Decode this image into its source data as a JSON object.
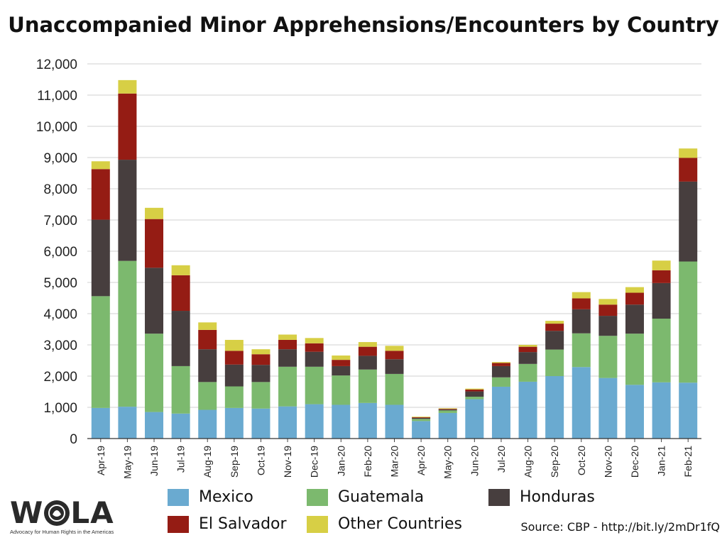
{
  "chart_data": {
    "type": "bar",
    "stacked": true,
    "title": "Unaccompanied Minor Apprehensions/Encounters by Country",
    "xlabel": "",
    "ylabel": "",
    "ylim": [
      0,
      12000
    ],
    "yticks": [
      0,
      1000,
      2000,
      3000,
      4000,
      5000,
      6000,
      7000,
      8000,
      9000,
      10000,
      11000,
      12000
    ],
    "ytick_labels": [
      "0",
      "1,000",
      "2,000",
      "3,000",
      "4,000",
      "5,000",
      "6,000",
      "7,000",
      "8,000",
      "9,000",
      "10,000",
      "11,000",
      "12,000"
    ],
    "grid": true,
    "legend_position": "bottom",
    "categories": [
      "Apr-19",
      "May-19",
      "Jun-19",
      "Jul-19",
      "Aug-19",
      "Sep-19",
      "Oct-19",
      "Nov-19",
      "Dec-19",
      "Jan-20",
      "Feb-20",
      "Mar-20",
      "Apr-20",
      "May-20",
      "Jun-20",
      "Jul-20",
      "Aug-20",
      "Sep-20",
      "Oct-20",
      "Nov-20",
      "Dec-20",
      "Jan-21",
      "Feb-21"
    ],
    "series": [
      {
        "name": "Mexico",
        "color": "#6aaad0",
        "values": [
          980,
          1020,
          850,
          800,
          920,
          980,
          960,
          1030,
          1100,
          1080,
          1140,
          1080,
          560,
          820,
          1260,
          1660,
          1820,
          2000,
          2290,
          1940,
          1720,
          1800,
          1790
        ]
      },
      {
        "name": "Guatemala",
        "color": "#7cb96e",
        "values": [
          3580,
          4670,
          2510,
          1520,
          890,
          690,
          850,
          1270,
          1200,
          940,
          1070,
          990,
          70,
          80,
          80,
          300,
          570,
          850,
          1080,
          1350,
          1640,
          2040,
          3880
        ]
      },
      {
        "name": "Honduras",
        "color": "#473e3e",
        "values": [
          2450,
          3240,
          2110,
          1770,
          1050,
          700,
          550,
          560,
          480,
          300,
          440,
          470,
          30,
          30,
          170,
          360,
          380,
          600,
          770,
          640,
          930,
          1140,
          2560
        ]
      },
      {
        "name": "El Salvador",
        "color": "#951c14",
        "values": [
          1620,
          2120,
          1560,
          1140,
          620,
          440,
          340,
          300,
          270,
          200,
          290,
          270,
          20,
          20,
          60,
          100,
          170,
          230,
          350,
          360,
          380,
          410,
          760
        ]
      },
      {
        "name": "Other Countries",
        "color": "#d7cf45",
        "values": [
          250,
          430,
          360,
          320,
          240,
          350,
          160,
          170,
          170,
          140,
          150,
          160,
          20,
          20,
          30,
          30,
          60,
          90,
          200,
          180,
          180,
          310,
          300
        ]
      }
    ]
  },
  "legend": {
    "items": [
      {
        "label": "Mexico",
        "color": "#6aaad0"
      },
      {
        "label": "Guatemala",
        "color": "#7cb96e"
      },
      {
        "label": "Honduras",
        "color": "#473e3e"
      },
      {
        "label": "El Salvador",
        "color": "#951c14"
      },
      {
        "label": "Other Countries",
        "color": "#d7cf45"
      }
    ]
  },
  "logo": {
    "word": "WOLA",
    "tagline": "Advocacy for Human Rights in the Americas"
  },
  "source": "Source: CBP - http://bit.ly/2mDr1fQ"
}
